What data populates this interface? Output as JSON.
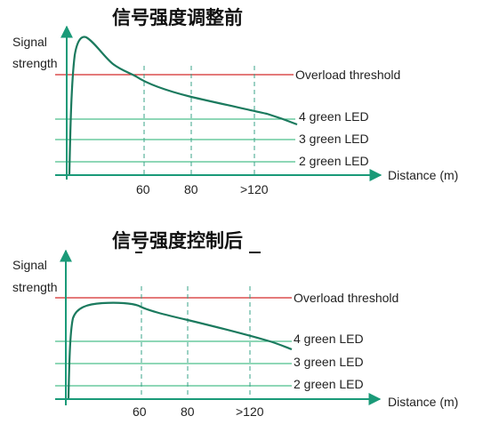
{
  "charts": [
    {
      "title": "信号强度调整前",
      "ylabel_line1": "Signal",
      "ylabel_line2": "strength",
      "xlabel": "Distance (m)",
      "ticks": [
        "60",
        "80",
        ">120"
      ],
      "thresholds": {
        "overload": "Overload threshold",
        "led4": "4 green LED",
        "led3": "3 green LED",
        "led2": "2 green LED"
      }
    },
    {
      "title": "信号强度控制后",
      "ylabel_line1": "Signal",
      "ylabel_line2": "strength",
      "xlabel": "Distance (m)",
      "ticks": [
        "60",
        "80",
        ">120"
      ],
      "thresholds": {
        "overload": "Overload threshold",
        "led4": "4 green LED",
        "led3": "3 green LED",
        "led2": "2 green LED"
      }
    }
  ],
  "colors": {
    "axis": "#1a9a78",
    "curve": "#1b7a5e",
    "overload_line": "#d42a2a",
    "led_line": "#4cbf8c",
    "guide": "#3aa38a"
  }
}
